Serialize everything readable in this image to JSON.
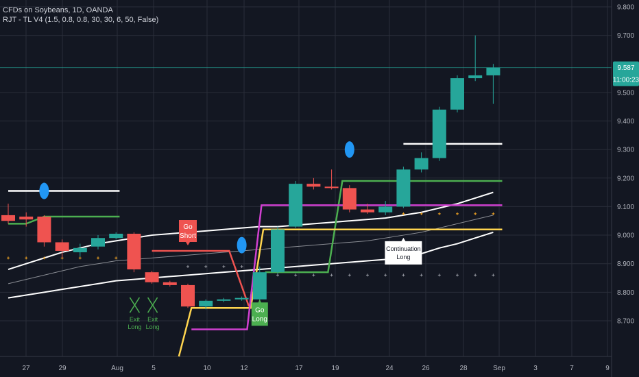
{
  "chart_data": {
    "type": "candlestick",
    "title": "CFDs on Soybeans, 1D, OANDA",
    "indicator_label": "RJT - TL V4 (1.5, 0.8, 0.8, 30, 30, 6, 50, False)",
    "ylim": [
      8.6,
      9.85
    ],
    "y_ticks": [
      "9.800",
      "9.700",
      "9.500",
      "9.400",
      "9.300",
      "9.200",
      "9.100",
      "9.000",
      "8.900",
      "8.800",
      "8.700"
    ],
    "x_ticks": [
      "27",
      "29",
      "Aug",
      "5",
      "10",
      "12",
      "17",
      "19",
      "24",
      "26",
      "28",
      "Sep",
      "3",
      "7",
      "9"
    ],
    "last_price": "9.587",
    "countdown": "11:00:23",
    "candles": [
      {
        "o": 9.07,
        "h": 9.11,
        "l": 9.04,
        "c": 9.05
      },
      {
        "o": 9.065,
        "h": 9.08,
        "l": 9.03,
        "c": 9.055
      },
      {
        "o": 9.065,
        "h": 9.07,
        "l": 8.96,
        "c": 8.975
      },
      {
        "o": 8.975,
        "h": 8.985,
        "l": 8.92,
        "c": 8.945
      },
      {
        "o": 8.94,
        "h": 8.97,
        "l": 8.925,
        "c": 8.955
      },
      {
        "o": 8.96,
        "h": 9.0,
        "l": 8.95,
        "c": 8.99
      },
      {
        "o": 8.99,
        "h": 9.01,
        "l": 8.985,
        "c": 9.005
      },
      {
        "o": 9.005,
        "h": 9.01,
        "l": 8.87,
        "c": 8.88
      },
      {
        "o": 8.87,
        "h": 8.875,
        "l": 8.83,
        "c": 8.835
      },
      {
        "o": 8.835,
        "h": 8.84,
        "l": 8.82,
        "c": 8.825
      },
      {
        "o": 8.825,
        "h": 8.83,
        "l": 8.745,
        "c": 8.75
      },
      {
        "o": 8.75,
        "h": 8.775,
        "l": 8.74,
        "c": 8.77
      },
      {
        "o": 8.77,
        "h": 8.78,
        "l": 8.765,
        "c": 8.775
      },
      {
        "o": 8.775,
        "h": 8.785,
        "l": 8.77,
        "c": 8.78
      },
      {
        "o": 8.775,
        "h": 8.89,
        "l": 8.76,
        "c": 8.87
      },
      {
        "o": 8.87,
        "h": 9.03,
        "l": 8.865,
        "c": 9.02
      },
      {
        "o": 9.03,
        "h": 9.19,
        "l": 9.025,
        "c": 9.18
      },
      {
        "o": 9.18,
        "h": 9.2,
        "l": 9.16,
        "c": 9.17
      },
      {
        "o": 9.17,
        "h": 9.23,
        "l": 9.16,
        "c": 9.165
      },
      {
        "o": 9.165,
        "h": 9.175,
        "l": 9.08,
        "c": 9.09
      },
      {
        "o": 9.09,
        "h": 9.11,
        "l": 9.075,
        "c": 9.08
      },
      {
        "o": 9.08,
        "h": 9.12,
        "l": 9.07,
        "c": 9.1
      },
      {
        "o": 9.1,
        "h": 9.24,
        "l": 9.095,
        "c": 9.23
      },
      {
        "o": 9.23,
        "h": 9.29,
        "l": 9.22,
        "c": 9.27
      },
      {
        "o": 9.27,
        "h": 9.45,
        "l": 9.26,
        "c": 9.44
      },
      {
        "o": 9.44,
        "h": 9.56,
        "l": 9.43,
        "c": 9.55
      },
      {
        "o": 9.55,
        "h": 9.7,
        "l": 9.54,
        "c": 9.56
      },
      {
        "o": 9.56,
        "h": 9.6,
        "l": 9.46,
        "c": 9.587
      }
    ],
    "bands": {
      "upper": [
        8.88,
        8.9,
        8.92,
        8.94,
        8.955,
        8.97,
        8.98,
        8.99,
        9.0,
        9.005,
        9.01,
        9.015,
        9.02,
        9.025,
        9.03,
        9.03,
        9.035,
        9.04,
        9.045,
        9.05,
        9.055,
        9.06,
        9.07,
        9.08,
        9.095,
        9.11,
        9.13,
        9.15
      ],
      "middle": [
        8.83,
        8.845,
        8.86,
        8.875,
        8.89,
        8.9,
        8.91,
        8.915,
        8.92,
        8.925,
        8.93,
        8.935,
        8.94,
        8.945,
        8.95,
        8.955,
        8.96,
        8.965,
        8.97,
        8.975,
        8.98,
        8.99,
        9.0,
        9.01,
        9.025,
        9.04,
        9.055,
        9.07
      ],
      "lower": [
        8.78,
        8.79,
        8.8,
        8.81,
        8.82,
        8.83,
        8.84,
        8.845,
        8.85,
        8.855,
        8.86,
        8.865,
        8.87,
        8.875,
        8.88,
        8.885,
        8.89,
        8.895,
        8.9,
        8.905,
        8.91,
        8.915,
        8.925,
        8.935,
        8.955,
        8.97,
        8.99,
        9.01
      ]
    },
    "annotations": {
      "go_short": [
        "Go",
        "Short"
      ],
      "go_long": [
        "Go",
        "Long"
      ],
      "continuation_long": [
        "Continuation",
        "Long"
      ],
      "exit_long": [
        "Exit",
        "Long"
      ]
    },
    "colors": {
      "up": "#26a69a",
      "down": "#ef5350",
      "bands": "#ffffff",
      "middle_band": "#8a8d94",
      "green_line": "#4caf50",
      "magenta_line": "#d040d0",
      "yellow_line": "#ffd54f",
      "red_line": "#ef5350",
      "circle": "#2196f3",
      "label_short": "#ef5350",
      "label_long": "#4caf50"
    }
  }
}
